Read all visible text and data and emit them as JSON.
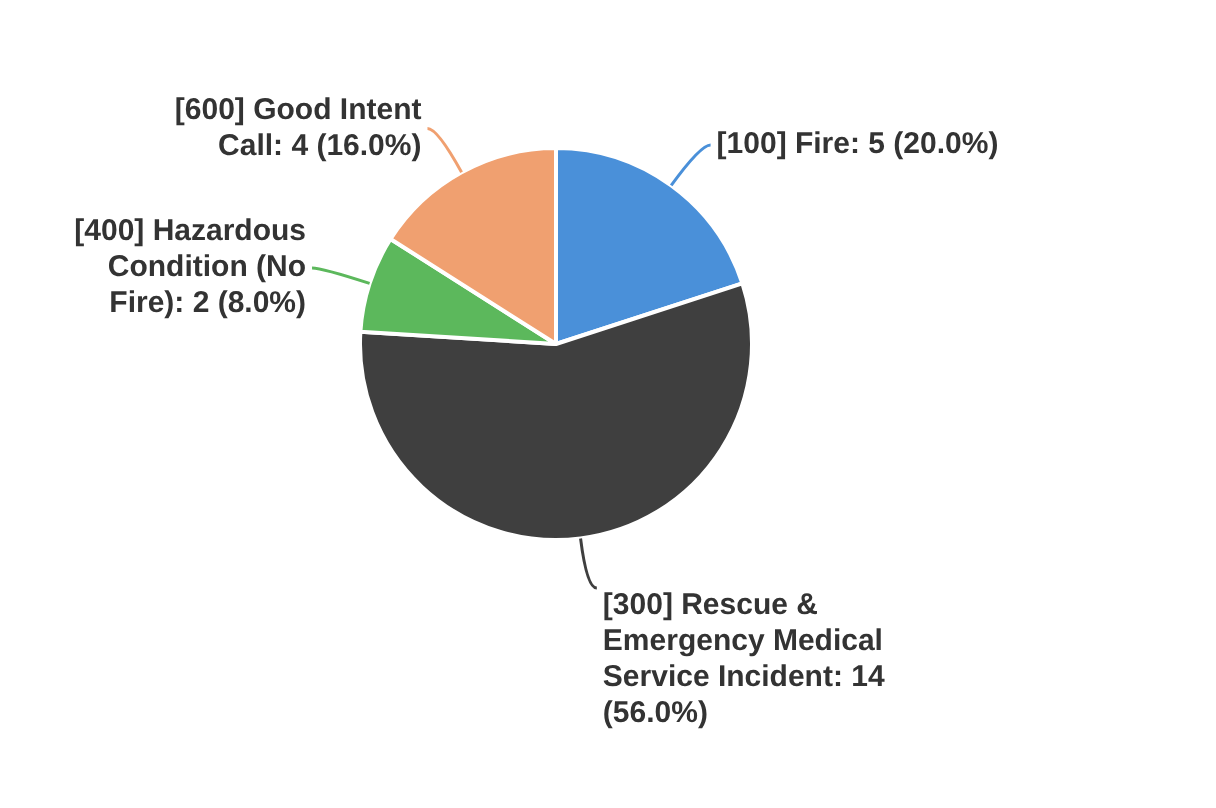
{
  "chart_data": {
    "type": "pie",
    "categories": [
      "[100] Fire",
      "[300] Rescue & Emergency Medical Service Incident",
      "[400] Hazardous Condition (No Fire)",
      "[600] Good Intent Call"
    ],
    "values": [
      5,
      14,
      2,
      4
    ],
    "colors": [
      "#4a90d9",
      "#3f3f3f",
      "#5cb85c",
      "#f0a070"
    ],
    "value_labels": [
      "5 (20.0%)",
      "14 (56.0%)",
      "2 (8.0%)",
      "4 (16.0%)"
    ],
    "legend": false
  }
}
